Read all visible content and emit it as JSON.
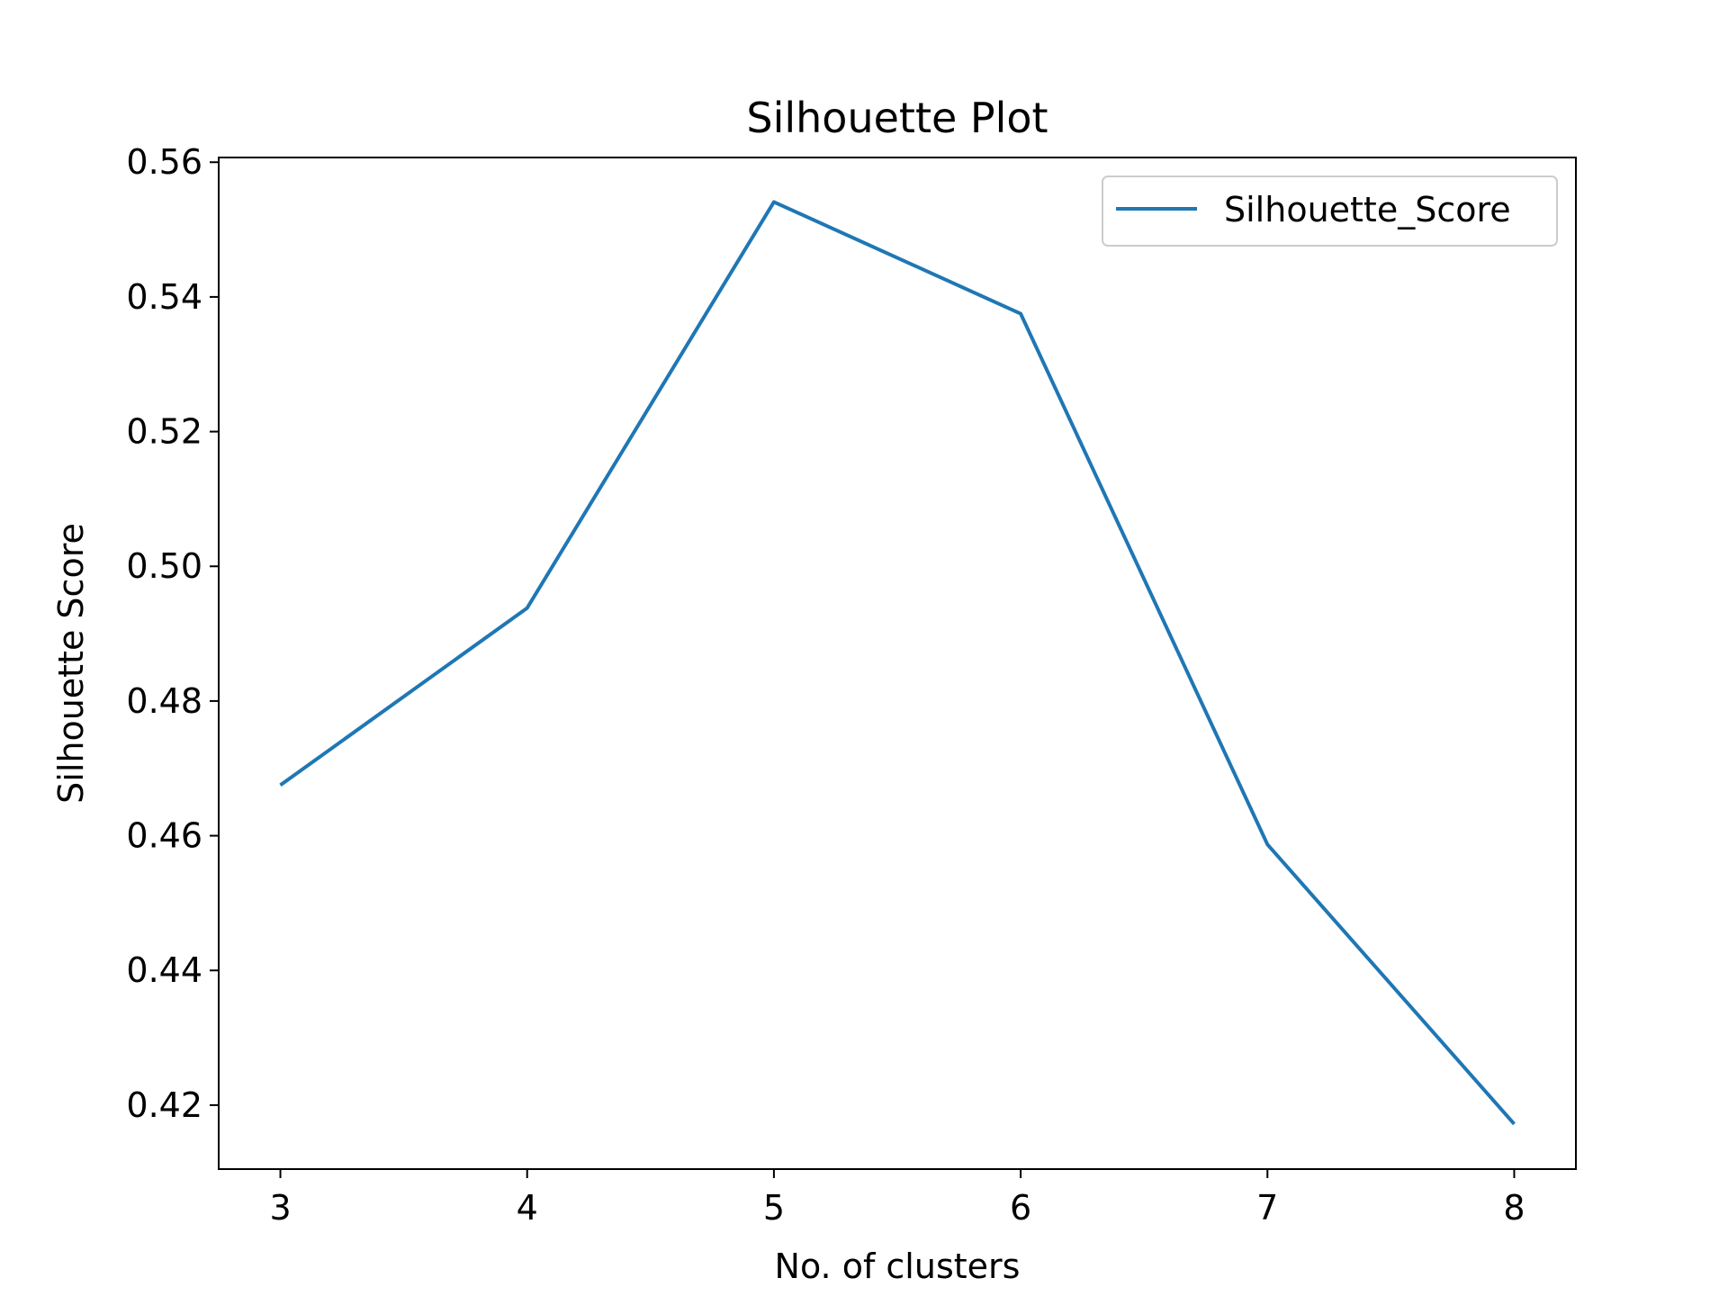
{
  "chart_data": {
    "type": "line",
    "title": "Silhouette Plot",
    "xlabel": "No. of clusters",
    "ylabel": "Silhouette Score",
    "x": [
      3,
      4,
      5,
      6,
      7,
      8
    ],
    "series": [
      {
        "name": "Silhouette_Score",
        "values": [
          0.4675,
          0.4938,
          0.5541,
          0.5375,
          0.4587,
          0.4172
        ],
        "color": "#1f77b4"
      }
    ],
    "xlim": [
      2.75,
      8.25
    ],
    "ylim": [
      0.4105,
      0.5607
    ],
    "xticks": [
      3,
      4,
      5,
      6,
      7,
      8
    ],
    "yticks": [
      0.42,
      0.44,
      0.46,
      0.48,
      0.5,
      0.52,
      0.54,
      0.56
    ],
    "ytick_labels": [
      "0.42",
      "0.44",
      "0.46",
      "0.48",
      "0.50",
      "0.52",
      "0.54",
      "0.56"
    ],
    "grid": false,
    "legend_position": "top-right"
  }
}
